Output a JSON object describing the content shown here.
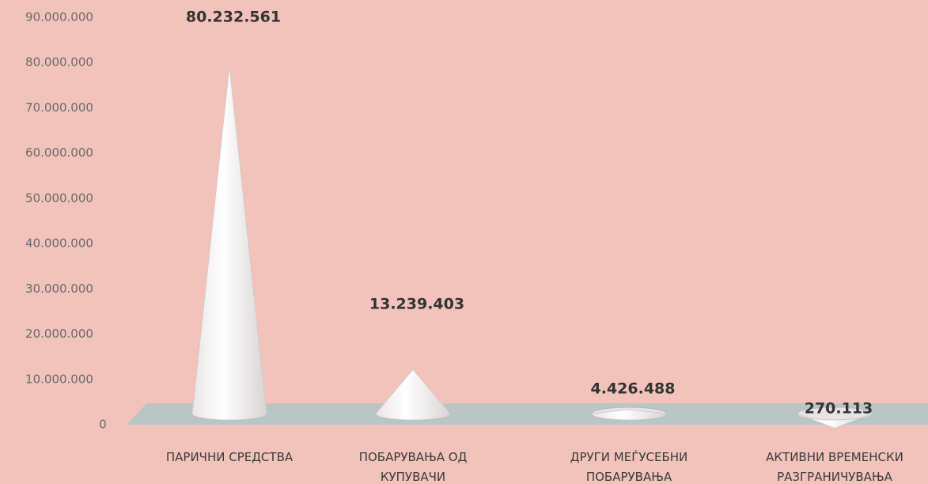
{
  "chart_data": {
    "type": "cone",
    "categories": [
      [
        "ПАРИЧНИ СРЕДСТВА"
      ],
      [
        "ПОБАРУВАЊА ОД",
        "КУПУВАЧИ"
      ],
      [
        "ДРУГИ МЕЃУСЕБНИ",
        "ПОБАРУВАЊА"
      ],
      [
        "АКТИВНИ ВРЕМЕНСКИ",
        "РАЗГРАНИЧУВАЊА"
      ]
    ],
    "values": [
      80232561,
      13239403,
      4426488,
      270113
    ],
    "value_labels": [
      "80.232.561",
      "13.239.403",
      "4.426.488",
      "270.113"
    ],
    "color": "#ffffff",
    "ylim": [
      0,
      90000000
    ],
    "yticks": [
      0,
      {
        "value": 10000000,
        "label": "10.000.000"
      },
      {
        "value": 20000000,
        "label": "20.000.000"
      },
      {
        "value": 30000000,
        "label": "30.000.000"
      },
      {
        "value": 40000000,
        "label": "40.000.000"
      },
      {
        "value": 50000000,
        "label": "50.000.000"
      },
      {
        "value": 60000000,
        "label": "60.000.000"
      },
      {
        "value": 70000000,
        "label": "70.000.000"
      },
      {
        "value": 80000000,
        "label": "80.000.000"
      },
      {
        "value": 90000000,
        "label": "90.000.000"
      }
    ]
  }
}
